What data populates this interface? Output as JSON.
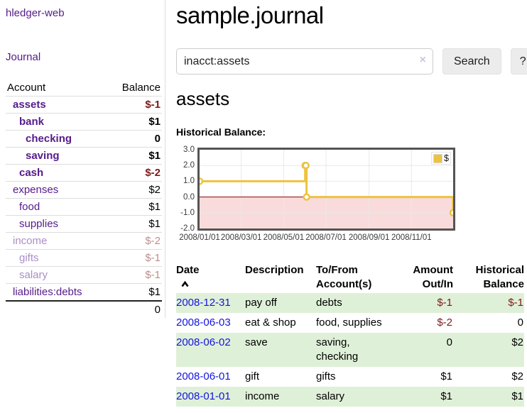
{
  "sidebar": {
    "brand": "hledger-web",
    "journal_link": "Journal",
    "table": {
      "account_header": "Account",
      "balance_header": "Balance",
      "accounts": [
        {
          "name": "assets",
          "balance": "$-1"
        },
        {
          "name": "bank",
          "balance": "$1"
        },
        {
          "name": "checking",
          "balance": "0"
        },
        {
          "name": "saving",
          "balance": "$1"
        },
        {
          "name": "cash",
          "balance": "$-2"
        },
        {
          "name": "expenses",
          "balance": "$2"
        },
        {
          "name": "food",
          "balance": "$1"
        },
        {
          "name": "supplies",
          "balance": "$1"
        },
        {
          "name": "income",
          "balance": "$-2"
        },
        {
          "name": "gifts",
          "balance": "$-1"
        },
        {
          "name": "salary",
          "balance": "$-1"
        },
        {
          "name": "liabilities:debts",
          "balance": "$1"
        }
      ],
      "total": "0"
    }
  },
  "header": {
    "title": "sample.journal"
  },
  "search": {
    "value": "inacct:assets",
    "clear_icon": "×",
    "search_button": "Search",
    "help_button": "?"
  },
  "account_view": {
    "heading": "assets",
    "chart_title": "Historical Balance:"
  },
  "chart_data": {
    "type": "line",
    "step": true,
    "title": "Historical Balance",
    "x_range": [
      "2008-01-01",
      "2008-12-31"
    ],
    "ylim": [
      -2,
      3
    ],
    "series": [
      {
        "name": "$",
        "color": "#edc240",
        "points": [
          {
            "date": "2008-01-01",
            "value": 1
          },
          {
            "date": "2008-06-01",
            "value": 2
          },
          {
            "date": "2008-06-02",
            "value": 2
          },
          {
            "date": "2008-06-03",
            "value": 0
          },
          {
            "date": "2008-12-31",
            "value": -1
          }
        ]
      }
    ],
    "x_ticks": [
      {
        "label": "2008/01/01",
        "date": "2008-01-01"
      },
      {
        "label": "2008/03/01",
        "date": "2008-03-01"
      },
      {
        "label": "2008/05/01",
        "date": "2008-05-01"
      },
      {
        "label": "2008/07/01",
        "date": "2008-07-01"
      },
      {
        "label": "2008/09/01",
        "date": "2008-09-01"
      },
      {
        "label": "2008/11/01",
        "date": "2008-11-01"
      }
    ],
    "y_ticks": [
      {
        "label": "3.0",
        "value": 3
      },
      {
        "label": "2.0",
        "value": 2
      },
      {
        "label": "1.0",
        "value": 1
      },
      {
        "label": "0.0",
        "value": 0
      },
      {
        "label": "-1.0",
        "value": -1
      },
      {
        "label": "-2.0",
        "value": -2
      }
    ],
    "legend": {
      "label": "$",
      "position": "top-right"
    },
    "grid": true,
    "negative_fill": "#fadbdb",
    "zero_line_color": "#8b0000",
    "sort_icon": "chevron-up"
  },
  "transactions": {
    "headers": {
      "date": "Date",
      "description": "Description",
      "tofrom1": "To/From",
      "tofrom2": "Account(s)",
      "amount1": "Amount",
      "amount2": "Out/In",
      "balance1": "Historical",
      "balance2": "Balance"
    },
    "rows": [
      {
        "date": "2008-12-31",
        "description": "pay off",
        "accounts": "debts",
        "amount": "$-1",
        "balance": "$-1"
      },
      {
        "date": "2008-06-03",
        "description": "eat & shop",
        "accounts": "food, supplies",
        "amount": "$-2",
        "balance": "0"
      },
      {
        "date": "2008-06-02",
        "description": "save",
        "accounts": "saving, checking",
        "amount": "0",
        "balance": "$2"
      },
      {
        "date": "2008-06-01",
        "description": "gift",
        "accounts": "gifts",
        "amount": "$1",
        "balance": "$2"
      },
      {
        "date": "2008-01-01",
        "description": "income",
        "accounts": "salary",
        "amount": "$1",
        "balance": "$1"
      }
    ]
  }
}
